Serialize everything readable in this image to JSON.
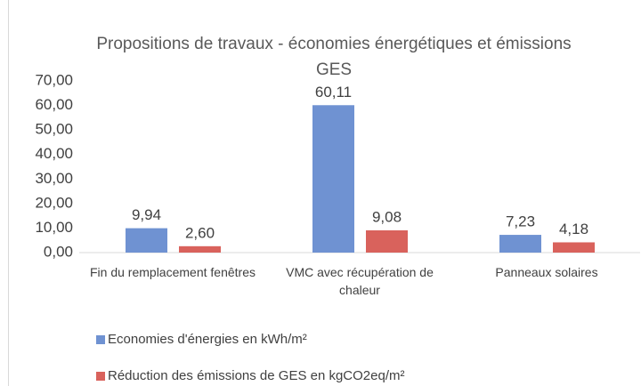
{
  "chart_data": {
    "type": "bar",
    "title": "Propositions de travaux - économies énergétiques et émissions GES",
    "categories": [
      "Fin du remplacement fenêtres",
      "VMC avec récupération de chaleur",
      "Panneaux solaires"
    ],
    "series": [
      {
        "name": "Economies d'énergies en kWh/m²",
        "color": "#6f92d2",
        "values": [
          9.94,
          60.11,
          7.23
        ],
        "value_labels": [
          "9,94",
          "60,11",
          "7,23"
        ]
      },
      {
        "name": "Réduction des émissions de GES en kgCO2eq/m²",
        "color": "#d9625c",
        "values": [
          2.6,
          9.08,
          4.18
        ],
        "value_labels": [
          "2,60",
          "9,08",
          "4,18"
        ]
      }
    ],
    "ylim": [
      0,
      70
    ],
    "yticks": [
      {
        "value": 0,
        "label": "0,00"
      },
      {
        "value": 10,
        "label": "10,00"
      },
      {
        "value": 20,
        "label": "20,00"
      },
      {
        "value": 30,
        "label": "30,00"
      },
      {
        "value": 40,
        "label": "40,00"
      },
      {
        "value": 50,
        "label": "50,00"
      },
      {
        "value": 60,
        "label": "60,00"
      },
      {
        "value": 70,
        "label": "70,00"
      }
    ],
    "legend": "bottom"
  }
}
